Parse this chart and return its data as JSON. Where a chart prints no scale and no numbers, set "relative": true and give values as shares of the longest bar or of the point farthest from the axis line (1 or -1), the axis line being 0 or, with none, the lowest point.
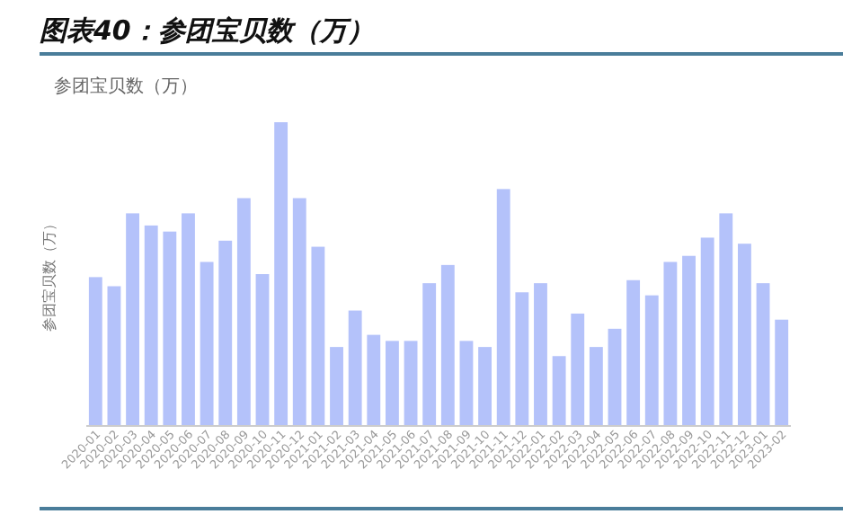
{
  "chart_data": {
    "type": "bar",
    "title": "图表40：参团宝贝数（万）",
    "subtitle": "参团宝贝数（万）",
    "ylabel": "参团宝贝数（万）",
    "relative": true,
    "color": "#b4c2fa",
    "categories": [
      "2020-01",
      "2020-02",
      "2020-03",
      "2020-04",
      "2020-05",
      "2020-06",
      "2020-07",
      "2020-08",
      "2020-09",
      "2020-10",
      "2020-11",
      "2020-12",
      "2021-01",
      "2021-02",
      "2021-03",
      "2021-04",
      "2021-05",
      "2021-06",
      "2021-07",
      "2021-08",
      "2021-09",
      "2021-10",
      "2021-11",
      "2021-12",
      "2022-01",
      "2022-02",
      "2022-03",
      "2022-04",
      "2022-05",
      "2022-06",
      "2022-07",
      "2022-08",
      "2022-09",
      "2022-10",
      "2022-11",
      "2022-12",
      "2023-01",
      "2023-02"
    ],
    "values": [
      0.49,
      0.46,
      0.7,
      0.66,
      0.64,
      0.7,
      0.54,
      0.61,
      0.75,
      0.5,
      1,
      0.75,
      0.59,
      0.26,
      0.38,
      0.3,
      0.28,
      0.28,
      0.47,
      0.53,
      0.28,
      0.26,
      0.78,
      0.44,
      0.47,
      0.23,
      0.37,
      0.26,
      0.32,
      0.48,
      0.43,
      0.54,
      0.56,
      0.62,
      0.7,
      0.6,
      0.47,
      0.35
    ]
  }
}
